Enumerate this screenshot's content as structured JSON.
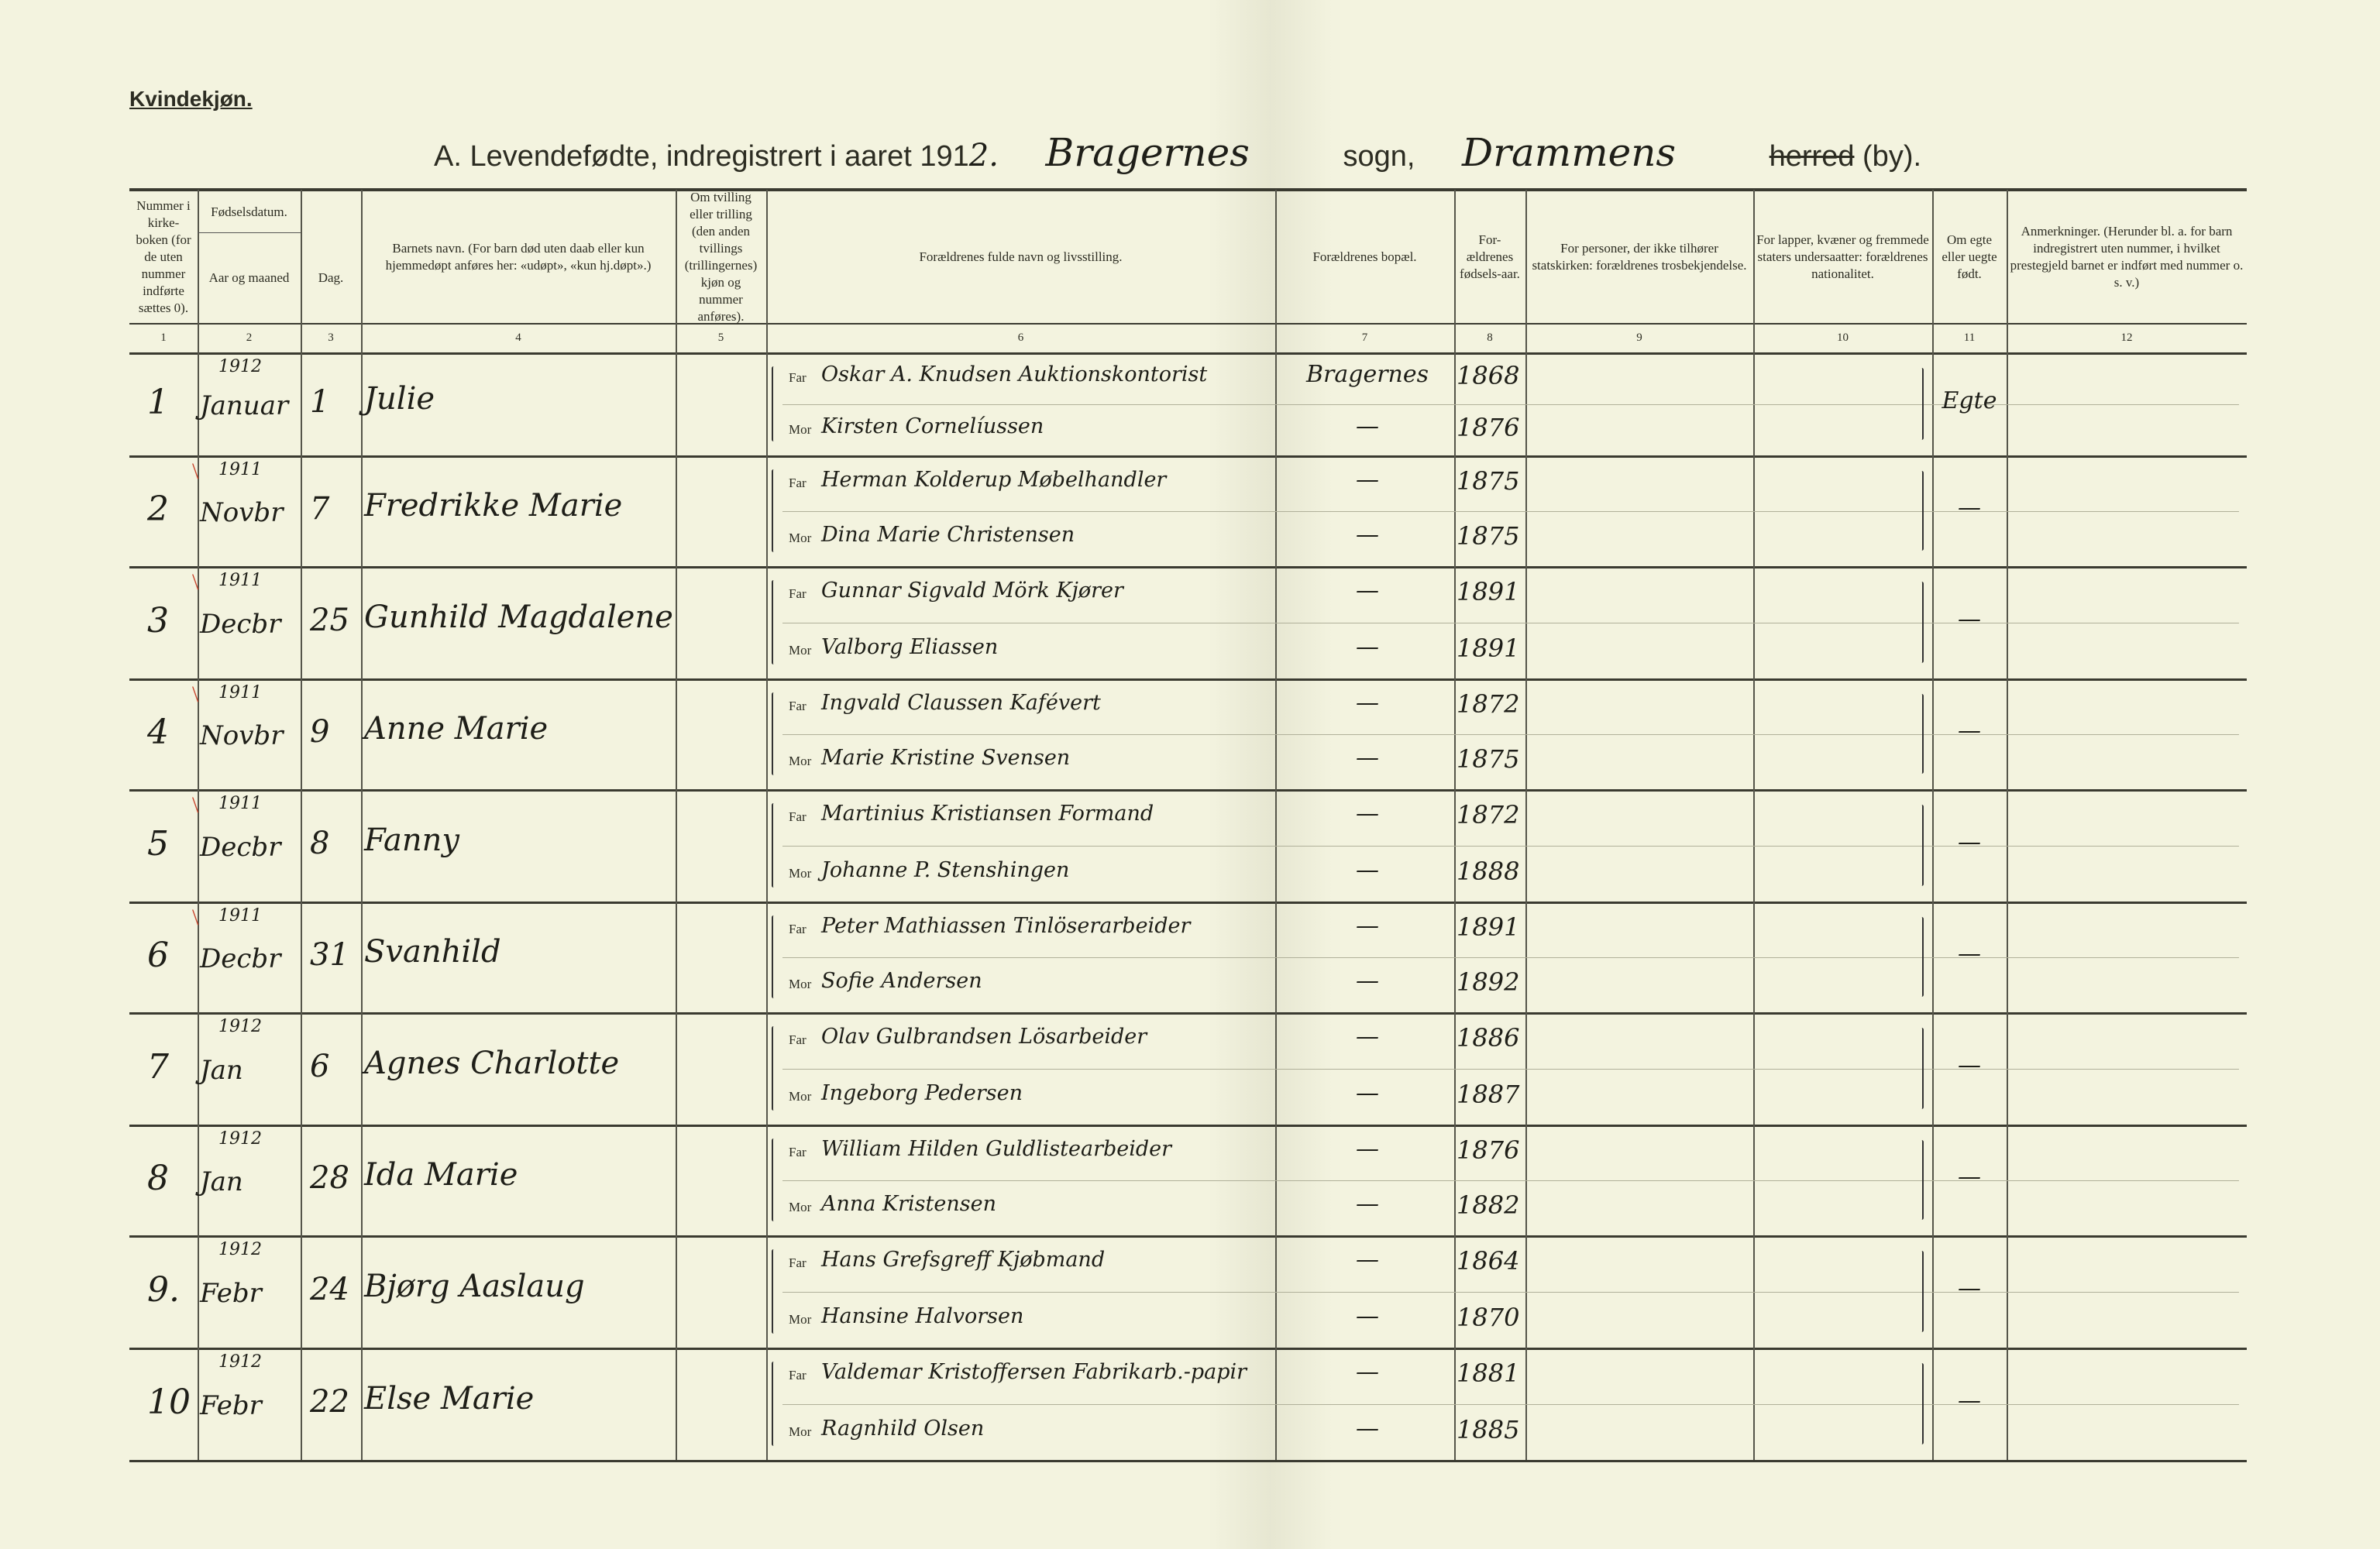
{
  "header": {
    "sex_label": "Kvindekjøn.",
    "title_prefix": "A. Levendefødte, indregistrert i aaret 191",
    "year_digit": "2.",
    "parish": "Bragernes",
    "sogn_label": "sogn,",
    "town": "Drammens",
    "herred_label": "herred",
    "by_label": "(by)."
  },
  "columns": [
    {
      "number": "1",
      "label": "Nummer i kirke-boken (for de uten nummer indførte sættes 0)."
    },
    {
      "number": "2",
      "label": "Aar og maaned"
    },
    {
      "number": "3",
      "label": "Dag."
    },
    {
      "number": "4",
      "label": "Barnets navn. (For barn død uten daab eller kun hjemmedøpt anføres her: «udøpt», «kun hj.døpt».)"
    },
    {
      "number": "5",
      "label": "Om tvilling eller trilling (den anden tvillings (trillingernes) kjøn og nummer anføres)."
    },
    {
      "number": "6",
      "label": "Forældrenes fulde navn og livsstilling."
    },
    {
      "number": "7",
      "label": "Forældrenes bopæl."
    },
    {
      "number": "8",
      "label": "For-ældrenes fødsels-aar."
    },
    {
      "number": "9",
      "label": "For personer, der ikke tilhører statskirken: forældrenes trosbekjendelse."
    },
    {
      "number": "10",
      "label": "For lapper, kvæner og fremmede staters undersaatter: forældrenes nationalitet."
    },
    {
      "number": "11",
      "label": "Om egte eller uegte født."
    },
    {
      "number": "12",
      "label": "Anmerkninger. (Herunder bl. a. for barn indregistrert uten nummer, i hvilket prestegjeld barnet er indført med nummer o. s. v.)"
    }
  ],
  "group_header": "Fødselsdatum.",
  "far_label": "Far",
  "mor_label": "Mor",
  "ink_colors": {
    "paper": "#f3f3df",
    "ink": "#1e1e18",
    "check_mark": "#c8442c"
  },
  "rows": [
    {
      "nr": "1",
      "year": "1912",
      "month": "Januar",
      "day": "1",
      "child": "Julie",
      "far": "Oskar A. Knudsen Auktionskontorist",
      "mor": "Kirsten Cornelíussen",
      "bopael": "Bragernes",
      "bopael_mor": "—",
      "far_year": "1868",
      "mor_year": "1876",
      "egte": "Egte",
      "checked": false
    },
    {
      "nr": "2",
      "year": "1911",
      "month": "Novbr",
      "day": "7",
      "child": "Fredrikke Marie",
      "far": "Herman Kolderup Møbelhandler",
      "mor": "Dina Marie Christensen",
      "bopael": "—",
      "bopael_mor": "—",
      "far_year": "1875",
      "mor_year": "1875",
      "egte": "—",
      "checked": true
    },
    {
      "nr": "3",
      "year": "1911",
      "month": "Decbr",
      "day": "25",
      "child": "Gunhild Magdalene",
      "far": "Gunnar Sigvald Mörk Kjører",
      "mor": "Valborg Eliassen",
      "bopael": "—",
      "bopael_mor": "—",
      "far_year": "1891",
      "mor_year": "1891",
      "egte": "—",
      "checked": true
    },
    {
      "nr": "4",
      "year": "1911",
      "month": "Novbr",
      "day": "9",
      "child": "Anne Marie",
      "far": "Ingvald Claussen Kafévert",
      "mor": "Marie Kristine Svensen",
      "bopael": "—",
      "bopael_mor": "—",
      "far_year": "1872",
      "mor_year": "1875",
      "egte": "—",
      "checked": true
    },
    {
      "nr": "5",
      "year": "1911",
      "month": "Decbr",
      "day": "8",
      "child": "Fanny",
      "far": "Martinius Kristiansen Formand",
      "mor": "Johanne P. Stenshingen",
      "bopael": "—",
      "bopael_mor": "—",
      "far_year": "1872",
      "mor_year": "1888",
      "egte": "—",
      "checked": true
    },
    {
      "nr": "6",
      "year": "1911",
      "month": "Decbr",
      "day": "31",
      "child": "Svanhild",
      "far": "Peter Mathiassen Tinlöserarbeider",
      "mor": "Sofie Andersen",
      "bopael": "—",
      "bopael_mor": "—",
      "far_year": "1891",
      "mor_year": "1892",
      "egte": "—",
      "checked": true
    },
    {
      "nr": "7",
      "year": "1912",
      "month": "Jan",
      "day": "6",
      "child": "Agnes Charlotte",
      "far": "Olav Gulbrandsen Lösarbeider",
      "mor": "Ingeborg Pedersen",
      "bopael": "—",
      "bopael_mor": "—",
      "far_year": "1886",
      "mor_year": "1887",
      "egte": "—",
      "checked": false
    },
    {
      "nr": "8",
      "year": "1912",
      "month": "Jan",
      "day": "28",
      "child": "Ida Marie",
      "far": "William Hilden Guldlistearbeider",
      "mor": "Anna Kristensen",
      "bopael": "—",
      "bopael_mor": "—",
      "far_year": "1876",
      "mor_year": "1882",
      "egte": "—",
      "checked": false
    },
    {
      "nr": "9.",
      "year": "1912",
      "month": "Febr",
      "day": "24",
      "child": "Bjørg Aaslaug",
      "far": "Hans Grefsgreff Kjøbmand",
      "mor": "Hansine Halvorsen",
      "bopael": "—",
      "bopael_mor": "—",
      "far_year": "1864",
      "mor_year": "1870",
      "egte": "—",
      "checked": false
    },
    {
      "nr": "10",
      "year": "1912",
      "month": "Febr",
      "day": "22",
      "child": "Else Marie",
      "far": "Valdemar Kristoffersen Fabrikarb.-papir",
      "mor": "Ragnhild Olsen",
      "bopael": "—",
      "bopael_mor": "—",
      "far_year": "1881",
      "mor_year": "1885",
      "egte": "—",
      "checked": false
    }
  ]
}
